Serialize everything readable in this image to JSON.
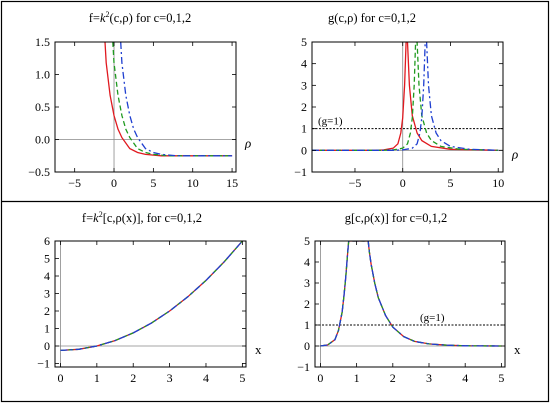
{
  "chart_data": [
    {
      "type": "line",
      "title": "f=k²(c,ρ)  for c=0,1,2",
      "title_parts": {
        "pre": "f=",
        "k": "k",
        "sup": "2",
        "post": "(c,ρ)  for c=0,1,2"
      },
      "xlabel": "ρ",
      "ylabel": "",
      "xlim": [
        -7.5,
        15.5
      ],
      "ylim": [
        -0.5,
        1.5
      ],
      "xticks": [
        -5,
        0,
        5,
        10,
        15
      ],
      "xtick_labels": [
        "−5",
        "0",
        "5",
        "10",
        "15"
      ],
      "yticks": [
        -0.5,
        0,
        0.5,
        1,
        1.5
      ],
      "ytick_labels": [
        "−0.5",
        "0.0",
        "0.5",
        "1.0",
        "1.5"
      ],
      "series": [
        {
          "color": "#e0191f",
          "dash": "solid",
          "x": [
            -1.15,
            -1.0,
            -0.5,
            0.0,
            0.5,
            1.0,
            2.0,
            3.0,
            4.0,
            6.0,
            10.0,
            15.0
          ],
          "y": [
            1.5,
            1.18,
            0.68,
            0.37,
            0.16,
            0.03,
            -0.14,
            -0.2,
            -0.23,
            -0.25,
            -0.25,
            -0.25
          ]
        },
        {
          "color": "#1f9a1f",
          "dash": "dashed",
          "x": [
            -0.15,
            0.0,
            0.5,
            1.0,
            1.5,
            2.0,
            3.0,
            4.0,
            5.0,
            7.0,
            10.0,
            15.0
          ],
          "y": [
            1.5,
            1.18,
            0.68,
            0.37,
            0.16,
            0.03,
            -0.14,
            -0.2,
            -0.23,
            -0.25,
            -0.25,
            -0.25
          ]
        },
        {
          "color": "#1f3fd0",
          "dash": "dashdot",
          "x": [
            0.85,
            1.0,
            1.5,
            2.0,
            2.5,
            3.0,
            4.0,
            5.0,
            6.0,
            8.0,
            10.0,
            15.0
          ],
          "y": [
            1.5,
            1.18,
            0.68,
            0.37,
            0.16,
            0.03,
            -0.14,
            -0.2,
            -0.23,
            -0.25,
            -0.25,
            -0.25
          ]
        }
      ]
    },
    {
      "type": "line",
      "title": "g(c,ρ) for c=0,1,2",
      "xlabel": "ρ",
      "ylabel": "",
      "xlim": [
        -9.5,
        10.5
      ],
      "ylim": [
        -1,
        5
      ],
      "xticks": [
        -5,
        0,
        5,
        10
      ],
      "xtick_labels": [
        "−5",
        "0",
        "5",
        "10"
      ],
      "yticks": [
        -1,
        0,
        1,
        2,
        3,
        4,
        5
      ],
      "ytick_labels": [
        "−1",
        "0",
        "1",
        "2",
        "3",
        "4",
        "5"
      ],
      "annotation": {
        "text": "(g=1)",
        "y": 1
      },
      "series": [
        {
          "color": "#e0191f",
          "dash": "solid",
          "x": [
            -9.5,
            -5.0,
            -3.0,
            -2.0,
            -1.0,
            -0.5,
            -0.2,
            0.0,
            0.2,
            0.35,
            0.5,
            0.7,
            1.0,
            1.5,
            2.0,
            3.0,
            5.0,
            10.0
          ],
          "y": [
            0.0,
            0.0,
            0.0,
            0.02,
            0.1,
            0.3,
            0.8,
            1.5,
            3.0,
            5.0,
            5.0,
            3.0,
            1.6,
            0.8,
            0.45,
            0.18,
            0.05,
            0.0
          ]
        },
        {
          "color": "#1f9a1f",
          "dash": "dashed",
          "x": [
            -9.5,
            -4.0,
            -2.0,
            -1.0,
            0.0,
            0.5,
            0.8,
            1.0,
            1.2,
            1.35,
            1.5,
            1.7,
            2.0,
            2.5,
            3.0,
            4.0,
            6.0,
            10.0
          ],
          "y": [
            0.0,
            0.0,
            0.0,
            0.02,
            0.1,
            0.3,
            0.8,
            1.5,
            3.0,
            5.0,
            5.0,
            3.0,
            1.6,
            0.8,
            0.45,
            0.18,
            0.05,
            0.0
          ]
        },
        {
          "color": "#1f3fd0",
          "dash": "dashdot",
          "x": [
            -9.5,
            -3.0,
            -1.0,
            0.0,
            1.0,
            1.5,
            1.8,
            2.0,
            2.2,
            2.35,
            2.5,
            2.7,
            3.0,
            3.5,
            4.0,
            5.0,
            7.0,
            10.0
          ],
          "y": [
            0.0,
            0.0,
            0.0,
            0.02,
            0.1,
            0.3,
            0.8,
            1.5,
            3.0,
            5.0,
            5.0,
            3.0,
            1.6,
            0.8,
            0.45,
            0.18,
            0.05,
            0.0
          ]
        }
      ]
    },
    {
      "type": "line",
      "title": "f=k²[c,ρ(x)], for c=0,1,2",
      "title_parts": {
        "pre": "f=",
        "k": "k",
        "sup": "2",
        "post": "[c,ρ(x)], for c=0,1,2"
      },
      "xlabel": "x",
      "ylabel": "",
      "xlim": [
        -0.15,
        5.1
      ],
      "ylim": [
        -1.2,
        6
      ],
      "xticks": [
        0,
        1,
        2,
        3,
        4,
        5
      ],
      "xtick_labels": [
        "0",
        "1",
        "2",
        "3",
        "4",
        "5"
      ],
      "yticks": [
        -1,
        0,
        1,
        2,
        3,
        4,
        5,
        6
      ],
      "ytick_labels": [
        "−1",
        "0",
        "1",
        "2",
        "3",
        "4",
        "5",
        "6"
      ],
      "series": [
        {
          "color": "#e0191f",
          "dash": "solid",
          "x": [
            0.0,
            0.5,
            1.0,
            1.5,
            2.0,
            2.5,
            3.0,
            3.5,
            4.0,
            4.5,
            5.0
          ],
          "y": [
            -0.25,
            -0.19,
            0.0,
            0.31,
            0.75,
            1.31,
            2.0,
            2.81,
            3.75,
            4.81,
            6.0
          ]
        },
        {
          "color": "#1f9a1f",
          "dash": "dashed",
          "x": [
            0.0,
            0.5,
            1.0,
            1.5,
            2.0,
            2.5,
            3.0,
            3.5,
            4.0,
            4.5,
            5.0
          ],
          "y": [
            -0.25,
            -0.19,
            0.0,
            0.31,
            0.75,
            1.31,
            2.0,
            2.81,
            3.75,
            4.81,
            6.0
          ]
        },
        {
          "color": "#1f3fd0",
          "dash": "dashdot",
          "x": [
            0.0,
            0.5,
            1.0,
            1.5,
            2.0,
            2.5,
            3.0,
            3.5,
            4.0,
            4.5,
            5.0
          ],
          "y": [
            -0.25,
            -0.19,
            0.0,
            0.31,
            0.75,
            1.31,
            2.0,
            2.81,
            3.75,
            4.81,
            6.0
          ]
        }
      ]
    },
    {
      "type": "line",
      "title": "g[c,ρ(x)] for c=0,1,2",
      "xlabel": "x",
      "ylabel": "",
      "xlim": [
        -0.15,
        5.1
      ],
      "ylim": [
        -1,
        5
      ],
      "xticks": [
        0,
        1,
        2,
        3,
        4,
        5
      ],
      "xtick_labels": [
        "0",
        "1",
        "2",
        "3",
        "4",
        "5"
      ],
      "yticks": [
        -1,
        0,
        1,
        2,
        3,
        4,
        5
      ],
      "ytick_labels": [
        "−1",
        "0",
        "1",
        "2",
        "3",
        "4",
        "5"
      ],
      "annotation": {
        "text": "(g=1)",
        "y": 1
      },
      "series": [
        {
          "color": "#e0191f",
          "dash": "solid",
          "x": [
            0.0,
            0.2,
            0.4,
            0.5,
            0.6,
            0.65,
            0.7,
            0.75,
            0.78,
            1.32,
            1.35,
            1.4,
            1.5,
            1.6,
            1.8,
            2.0,
            2.3,
            2.6,
            3.0,
            3.5,
            4.0,
            5.0
          ],
          "y": [
            0.0,
            0.05,
            0.3,
            0.75,
            1.6,
            2.4,
            3.3,
            4.4,
            5.0,
            5.0,
            4.5,
            3.9,
            3.0,
            2.3,
            1.45,
            0.9,
            0.45,
            0.22,
            0.1,
            0.04,
            0.01,
            0.0
          ]
        },
        {
          "color": "#1f9a1f",
          "dash": "dashed",
          "x": [
            0.0,
            0.2,
            0.4,
            0.5,
            0.6,
            0.65,
            0.7,
            0.75,
            0.78,
            1.32,
            1.35,
            1.4,
            1.5,
            1.6,
            1.8,
            2.0,
            2.3,
            2.6,
            3.0,
            3.5,
            4.0,
            5.0
          ],
          "y": [
            0.0,
            0.05,
            0.3,
            0.75,
            1.6,
            2.4,
            3.3,
            4.4,
            5.0,
            5.0,
            4.5,
            3.9,
            3.0,
            2.3,
            1.45,
            0.9,
            0.45,
            0.22,
            0.1,
            0.04,
            0.01,
            0.0
          ]
        },
        {
          "color": "#1f3fd0",
          "dash": "dashdot",
          "x": [
            0.0,
            0.2,
            0.4,
            0.5,
            0.6,
            0.65,
            0.7,
            0.75,
            0.78,
            1.32,
            1.35,
            1.4,
            1.5,
            1.6,
            1.8,
            2.0,
            2.3,
            2.6,
            3.0,
            3.5,
            4.0,
            5.0
          ],
          "y": [
            0.0,
            0.05,
            0.3,
            0.75,
            1.6,
            2.4,
            3.3,
            4.4,
            5.0,
            5.0,
            4.5,
            3.9,
            3.0,
            2.3,
            1.45,
            0.9,
            0.45,
            0.22,
            0.1,
            0.04,
            0.01,
            0.0
          ]
        }
      ]
    }
  ]
}
